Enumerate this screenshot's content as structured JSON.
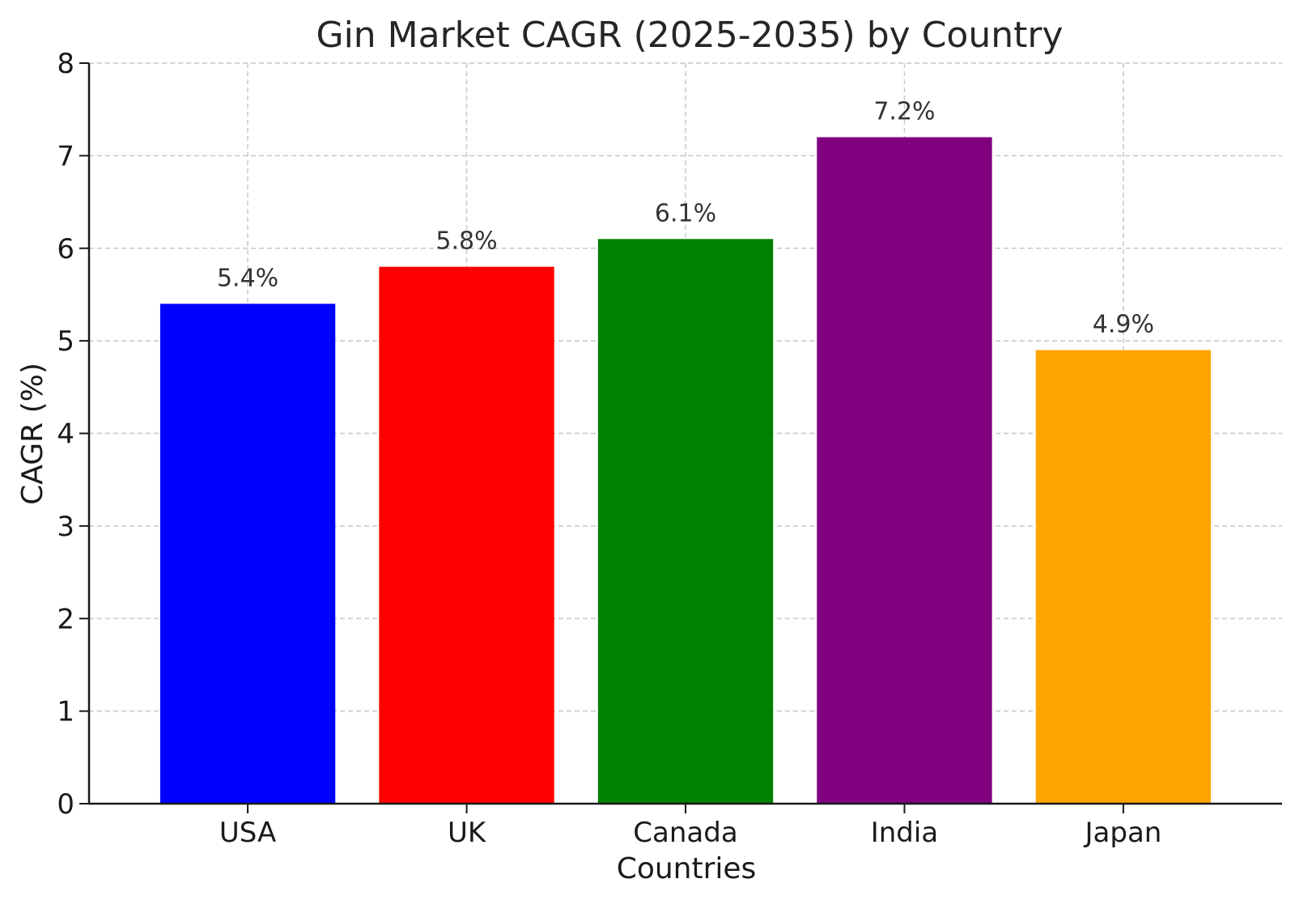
{
  "chart_data": {
    "type": "bar",
    "title": "Gin Market CAGR (2025-2035) by Country",
    "xlabel": "Countries",
    "ylabel": "CAGR (%)",
    "categories": [
      "USA",
      "UK",
      "Canada",
      "India",
      "Japan"
    ],
    "values": [
      5.4,
      5.8,
      6.1,
      7.2,
      4.9
    ],
    "data_labels": [
      "5.4%",
      "5.8%",
      "6.1%",
      "7.2%",
      "4.9%"
    ],
    "colors": [
      "#0000ff",
      "#ff0000",
      "#008000",
      "#800080",
      "#ffa500"
    ],
    "ylim": [
      0,
      8
    ],
    "yticks": [
      "0",
      "1",
      "2",
      "3",
      "4",
      "5",
      "6",
      "7",
      "8"
    ],
    "grid": true
  }
}
